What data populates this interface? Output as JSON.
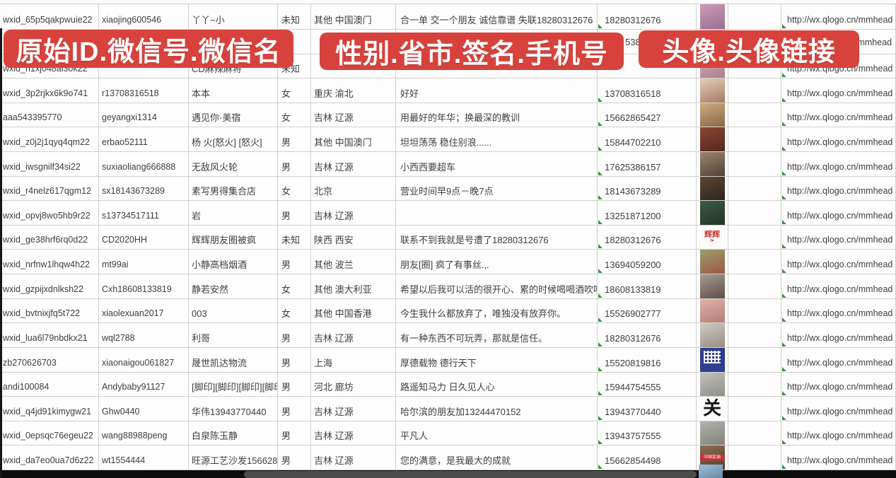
{
  "theme": {
    "banner_red": "#d8423c",
    "grid_line": "#d2d0ce",
    "text": "#3f3f3f",
    "triangle_green": "#3d9140",
    "scrollbar_thumb": "#4c4c4c",
    "bottom_bar": "#0d0d0d"
  },
  "banners": {
    "b1": "原始ID.微信号.微信名",
    "b2": "性别.省市.签名.手机号",
    "b3": "头像.头像链接"
  },
  "fragments": {
    "phone_tail": "5386",
    "link_tail": "/mmhead"
  },
  "rows": [
    {
      "id": "wxid_65p5qakpwuie22",
      "account": "xiaojing600546",
      "name": "丫丫~小",
      "gender": "未知",
      "region": "其他 中国澳门",
      "signature": "合一单 交一个朋友 诚信靠谱 失联18280312676",
      "phone": "18280312676",
      "link": "http://wx.qlogo.cn/mmhead",
      "avatar": {
        "g": [
          "#cf9ab5",
          "#9a6f93"
        ]
      }
    },
    {
      "id": "",
      "account": "",
      "name": "",
      "gender": "",
      "region": "",
      "signature": "",
      "phone": "",
      "link": "",
      "avatar": {
        "g": [
          "#e3c3cf",
          "#c79aae"
        ]
      }
    },
    {
      "id": "wxid_h1xj048al3ok22",
      "account": "",
      "name": "CD麻辣麻将",
      "gender": "未知",
      "region": "",
      "signature": "",
      "phone": "",
      "link": "http://wx.qlogo.cn/mmhead",
      "avatar": {
        "g": [
          "#d8b2ba",
          "#a87f8c"
        ]
      }
    },
    {
      "id": "wxid_3p2rjkx6k9o741",
      "account": "r13708316518",
      "name": "本本",
      "gender": "女",
      "region": "重庆 渝北",
      "signature": "好好",
      "phone": "13708316518",
      "link": "http://wx.qlogo.cn/mmhead",
      "avatar": {
        "g": [
          "#e3cdb8",
          "#a97a62"
        ]
      }
    },
    {
      "id": "aaa543395770",
      "account": "geyangxi1314",
      "name": "遇见你·美宿",
      "gender": "女",
      "region": "吉林 辽源",
      "signature": "用最好的年华；换最深的教训",
      "phone": "15662865427",
      "link": "http://wx.qlogo.cn/mmhead",
      "avatar": {
        "g": [
          "#cdaa7d",
          "#8a6847"
        ]
      }
    },
    {
      "id": "wxid_z0j2j1qyq4qm22",
      "account": "erbao52111",
      "name": "杨 火[怒火] [怒火]",
      "gender": "男",
      "region": "其他 中国澳门",
      "signature": "坦坦荡荡 稳住别浪......",
      "phone": "15844702210",
      "link": "http://wx.qlogo.cn/mmhead",
      "avatar": {
        "g": [
          "#8a4534",
          "#57281f"
        ]
      }
    },
    {
      "id": "wxid_iwsgnilf34si22",
      "account": "suxiaoliang666888",
      "name": "无敌风火轮",
      "gender": "男",
      "region": "吉林 辽源",
      "signature": "小西西要超车",
      "phone": "17625386157",
      "link": "http://wx.qlogo.cn/mmhead",
      "avatar": {
        "g": [
          "#9b8470",
          "#4f4238"
        ]
      }
    },
    {
      "id": "wxid_r4nelz617qgm12",
      "account": "sx18143673289",
      "name": "素写男得集合店",
      "gender": "女",
      "region": "北京",
      "signature": "营业时间早9点－晚7点",
      "phone": "18143673289",
      "link": "http://wx.qlogo.cn/mmhead",
      "avatar": {
        "g": [
          "#5d4734",
          "#2e241c"
        ]
      }
    },
    {
      "id": "wxid_opvj8wo5hb9r22",
      "account": "s13734517111",
      "name": "岩",
      "gender": "男",
      "region": "吉林 辽源",
      "signature": "",
      "phone": "13251871200",
      "link": "http://wx.qlogo.cn/mmhead",
      "avatar": {
        "g": [
          "#3c5a45",
          "#22352a"
        ]
      }
    },
    {
      "id": "wxid_ge38hrf6rq0d22",
      "account": "CD2020HH",
      "name": "辉辉朋友圈被疯",
      "gender": "未知",
      "region": "陕西 西安",
      "signature": "联系不到我就是号遭了18280312676",
      "phone": "18280312676",
      "link": "http://wx.qlogo.cn/mmhead",
      "avatar": {
        "bg": "#fbfbfb",
        "text": "辉辉",
        "text_color": "#d23430",
        "sub": "I♥"
      }
    },
    {
      "id": "wxid_nrfnw1lhqw4h22",
      "account": "mt99ai",
      "name": "小静高档烟酒",
      "gender": "男",
      "region": "其他 波兰",
      "signature": "朋友[圈] 疯了有事丝.,.",
      "phone": "13694059200",
      "link": "http://wx.qlogo.cn/mmhead",
      "avatar": {
        "g": [
          "#97a06b",
          "#a05744"
        ]
      }
    },
    {
      "id": "wxid_gzpijxdnlksh22",
      "account": "Cxh18608133819",
      "name": "静若安然",
      "gender": "女",
      "region": "其他 澳大利亚",
      "signature": "希望以后我可以活的很开心、累的时候喝喝酒吹吹[",
      "phone": "18608133819",
      "link": "http://wx.qlogo.cn/mmhead",
      "avatar": {
        "g": [
          "#a49a94",
          "#5f4e47"
        ]
      }
    },
    {
      "id": "wxid_bvtnixjfq5t722",
      "account": "xiaolexuan2017",
      "name": "003",
      "gender": "女",
      "region": "其他 中国香港",
      "signature": "今生我什么都放弃了，唯独没有放弃你。",
      "phone": "15526902777",
      "link": "http://wx.qlogo.cn/mmhead",
      "avatar": {
        "g": [
          "#e0b3ab",
          "#b37d74"
        ]
      }
    },
    {
      "id": "wxid_lua6l79nbdkx21",
      "account": "wql2788",
      "name": "利哥",
      "gender": "男",
      "region": "吉林 辽源",
      "signature": "有一种东西不可玩弄，那就是信任。",
      "phone": "18280312676",
      "link": "http://wx.qlogo.cn/mmhead",
      "avatar": {
        "g": [
          "#cfcac2",
          "#958e84"
        ]
      }
    },
    {
      "id": "zb270626703",
      "account": "xiaonaigou061827",
      "name": "晟世凯达物流",
      "gender": "男",
      "region": "上海",
      "signature": "厚德载物 德行天下",
      "phone": "15520819816",
      "link": "http://wx.qlogo.cn/mmhead",
      "avatar": {
        "pattern": "qr"
      }
    },
    {
      "id": "andi100084",
      "account": "Andybaby91127",
      "name": "[脚印][脚印][脚印][脚印]",
      "gender": "男",
      "region": "河北 廊坊",
      "signature": "路遥知马力 日久见人心",
      "phone": "15944754555",
      "link": "http://wx.qlogo.cn/mmhead",
      "avatar": {
        "g": [
          "#c2c2bd",
          "#8f8f89"
        ]
      }
    },
    {
      "id": "wxid_q4jd91kimygw21",
      "account": "Ghw0440",
      "name": "华伟13943770440",
      "gender": "男",
      "region": "吉林 辽源",
      "signature": "哈尔滨的朋友加13244470152",
      "phone": "13943770440",
      "link": "http://wx.qlogo.cn/mmhead",
      "avatar": {
        "bg": "#fdfdfd",
        "text": "关",
        "text_color": "#161616",
        "big": true
      }
    },
    {
      "id": "wxid_0epsqc76egeu22",
      "account": "wang88988peng",
      "name": "白泉陈玉静",
      "gender": "男",
      "region": "吉林 辽源",
      "signature": "平凡人",
      "phone": "13943757555",
      "link": "http://wx.qlogo.cn/mmhead",
      "avatar": {
        "g": [
          "#b3b3ae",
          "#82827c"
        ]
      }
    },
    {
      "id": "wxid_da7eo0ua7d6z22",
      "account": "wt1554444",
      "name": "旺源工艺沙发15662854",
      "gender": "男",
      "region": "吉林 辽源",
      "signature": "您的满意，是我最大的成就",
      "phone": "15662854498",
      "link": "http://wx.qlogo.cn/mmhead",
      "avatar": {
        "g": [
          "#8a6a52",
          "#5a4032"
        ],
        "strip": "中国加油"
      }
    }
  ],
  "bottom_partial_avatar": {
    "g": [
      "#9cc0da",
      "#6888a8"
    ]
  }
}
